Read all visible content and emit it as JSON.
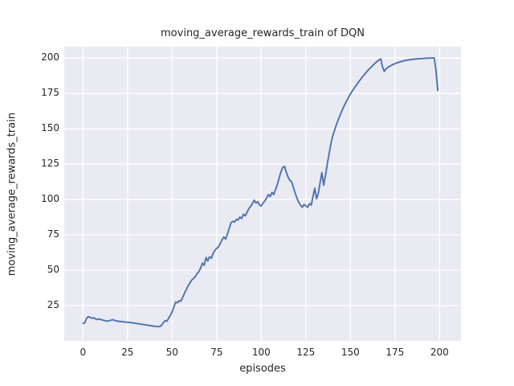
{
  "chart_data": {
    "type": "line",
    "title": "moving_average_rewards_train of DQN",
    "xlabel": "episodes",
    "ylabel": "moving_average_rewards_train",
    "xlim": [
      -10.5,
      212
    ],
    "ylim": [
      0,
      208
    ],
    "x_ticks": [
      0,
      25,
      50,
      75,
      100,
      125,
      150,
      175,
      200
    ],
    "y_ticks": [
      25,
      50,
      75,
      100,
      125,
      150,
      175,
      200
    ],
    "grid": true,
    "legend": "none",
    "colors": {
      "axes_background": "#eaeaf2",
      "grid_line": "#ffffff",
      "series_line": "#4c72b0",
      "text": "#262626",
      "figure_background": "#ffffff"
    },
    "series": [
      {
        "name": "moving_average_rewards_train",
        "points": [
          [
            0,
            12.5
          ],
          [
            1,
            12.7
          ],
          [
            2,
            16.0
          ],
          [
            3,
            17.2
          ],
          [
            4,
            16.6
          ],
          [
            5,
            16.1
          ],
          [
            6,
            16.4
          ],
          [
            7,
            15.6
          ],
          [
            8,
            15.1
          ],
          [
            9,
            15.6
          ],
          [
            10,
            15.2
          ],
          [
            11,
            14.8
          ],
          [
            12,
            14.5
          ],
          [
            13,
            14.1
          ],
          [
            14,
            14.0
          ],
          [
            15,
            14.5
          ],
          [
            16,
            14.8
          ],
          [
            17,
            15.0
          ],
          [
            18,
            14.4
          ],
          [
            19,
            14.1
          ],
          [
            20,
            13.9
          ],
          [
            22,
            13.6
          ],
          [
            24,
            13.3
          ],
          [
            26,
            13.1
          ],
          [
            28,
            12.8
          ],
          [
            30,
            12.4
          ],
          [
            32,
            12.0
          ],
          [
            34,
            11.6
          ],
          [
            36,
            11.2
          ],
          [
            38,
            10.8
          ],
          [
            40,
            10.4
          ],
          [
            42,
            10.2
          ],
          [
            43,
            10.1
          ],
          [
            44,
            11.0
          ],
          [
            45,
            12.8
          ],
          [
            46,
            14.3
          ],
          [
            47,
            13.9
          ],
          [
            48,
            16.0
          ],
          [
            49,
            18.0
          ],
          [
            50,
            20.5
          ],
          [
            51,
            24.0
          ],
          [
            52,
            27.5
          ],
          [
            53,
            27.0
          ],
          [
            54,
            28.5
          ],
          [
            55,
            28.2
          ],
          [
            56,
            31.0
          ],
          [
            57,
            34.0
          ],
          [
            58,
            36.5
          ],
          [
            59,
            39.0
          ],
          [
            60,
            41.0
          ],
          [
            61,
            43.0
          ],
          [
            62,
            44.2
          ],
          [
            63,
            45.5
          ],
          [
            64,
            47.5
          ],
          [
            65,
            49.0
          ],
          [
            66,
            51.5
          ],
          [
            67,
            55.0
          ],
          [
            68,
            53.5
          ],
          [
            69,
            59.0
          ],
          [
            70,
            56.5
          ],
          [
            71,
            59.5
          ],
          [
            72,
            58.5
          ],
          [
            73,
            62.0
          ],
          [
            74,
            64.0
          ],
          [
            75,
            65.5
          ],
          [
            76,
            66.5
          ],
          [
            77,
            69.0
          ],
          [
            78,
            71.5
          ],
          [
            79,
            73.5
          ],
          [
            80,
            72.0
          ],
          [
            81,
            75.5
          ],
          [
            82,
            79.5
          ],
          [
            83,
            83.5
          ],
          [
            84,
            84.5
          ],
          [
            85,
            84.0
          ],
          [
            86,
            86.0
          ],
          [
            87,
            85.5
          ],
          [
            88,
            87.5
          ],
          [
            89,
            86.5
          ],
          [
            90,
            89.5
          ],
          [
            91,
            88.5
          ],
          [
            92,
            91.0
          ],
          [
            93,
            93.5
          ],
          [
            94,
            95.0
          ],
          [
            95,
            97.0
          ],
          [
            96,
            99.5
          ],
          [
            97,
            97.5
          ],
          [
            98,
            98.5
          ],
          [
            99,
            96.0
          ],
          [
            100,
            95.5
          ],
          [
            101,
            97.5
          ],
          [
            102,
            99.0
          ],
          [
            103,
            101.0
          ],
          [
            104,
            103.5
          ],
          [
            105,
            102.0
          ],
          [
            106,
            105.0
          ],
          [
            107,
            103.5
          ],
          [
            108,
            107.0
          ],
          [
            109,
            110.5
          ],
          [
            110,
            115.0
          ],
          [
            111,
            119.5
          ],
          [
            112,
            122.5
          ],
          [
            113,
            123.5
          ],
          [
            114,
            119.5
          ],
          [
            115,
            116.0
          ],
          [
            116,
            113.5
          ],
          [
            117,
            112.5
          ],
          [
            118,
            108.5
          ],
          [
            119,
            104.5
          ],
          [
            120,
            101.0
          ],
          [
            121,
            98.0
          ],
          [
            122,
            96.0
          ],
          [
            123,
            94.5
          ],
          [
            124,
            96.5
          ],
          [
            125,
            95.5
          ],
          [
            126,
            94.5
          ],
          [
            127,
            97.0
          ],
          [
            128,
            96.0
          ],
          [
            129,
            102.0
          ],
          [
            130,
            108.0
          ],
          [
            131,
            100.5
          ],
          [
            132,
            104.5
          ],
          [
            133,
            112.0
          ],
          [
            134,
            119.0
          ],
          [
            135,
            110.0
          ],
          [
            136,
            117.0
          ],
          [
            137,
            125.0
          ],
          [
            138,
            132.0
          ],
          [
            139,
            139.0
          ],
          [
            140,
            144.5
          ],
          [
            142,
            152.5
          ],
          [
            144,
            159.0
          ],
          [
            146,
            165.0
          ],
          [
            148,
            170.0
          ],
          [
            150,
            174.5
          ],
          [
            152,
            178.5
          ],
          [
            154,
            182.0
          ],
          [
            156,
            185.5
          ],
          [
            158,
            188.5
          ],
          [
            160,
            191.5
          ],
          [
            162,
            194.0
          ],
          [
            164,
            196.5
          ],
          [
            165,
            197.5
          ],
          [
            166,
            198.6
          ],
          [
            167,
            199.3
          ],
          [
            168,
            193.5
          ],
          [
            169,
            190.5
          ],
          [
            170,
            192.5
          ],
          [
            172,
            194.2
          ],
          [
            174,
            195.5
          ],
          [
            176,
            196.5
          ],
          [
            178,
            197.3
          ],
          [
            180,
            198.0
          ],
          [
            182,
            198.5
          ],
          [
            184,
            198.9
          ],
          [
            186,
            199.2
          ],
          [
            188,
            199.4
          ],
          [
            190,
            199.6
          ],
          [
            192,
            199.8
          ],
          [
            194,
            199.9
          ],
          [
            196,
            200.0
          ],
          [
            197,
            200.0
          ],
          [
            198,
            191.0
          ],
          [
            199,
            177.0
          ]
        ]
      }
    ]
  }
}
